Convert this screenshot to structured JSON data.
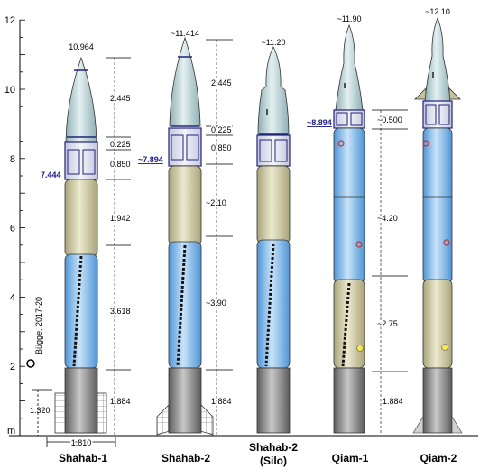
{
  "axis": {
    "unit": "m",
    "ticks": [
      "2",
      "4",
      "6",
      "8",
      "10",
      "12"
    ]
  },
  "credit": "Bügge, 2017-20",
  "base_dims": {
    "height": "1.320",
    "diameter": "1.810"
  },
  "rockets": [
    {
      "name": "Shahab-1",
      "subname": "",
      "top_label": "10.964",
      "marker": "7.444",
      "sections": [
        "2.445",
        "0.225",
        "0.850",
        "1.942",
        "3.618",
        "1.884"
      ]
    },
    {
      "name": "Shahab-2",
      "subname": "",
      "top_label": "~11.414",
      "marker": "~7.894",
      "sections": [
        "2.445",
        "0.225",
        "0.850",
        "~2.10",
        "~3.90",
        "1.884"
      ]
    },
    {
      "name": "Shahab-2",
      "subname": "(Silo)",
      "top_label": "~11.20",
      "marker": "",
      "sections": []
    },
    {
      "name": "Qiam-1",
      "subname": "",
      "top_label": "~11.90",
      "marker": "~8.894",
      "sections": [
        "~0.500",
        "~4.20",
        "~2.75",
        "1.884"
      ]
    },
    {
      "name": "Qiam-2",
      "subname": "",
      "top_label": "~12.10",
      "marker": "",
      "sections": []
    }
  ],
  "colors": {
    "warhead": "#b7cfd3",
    "guidance": "#dfe3ee",
    "fuel_tank": "#cdc9a5",
    "oxidizer_tank": "#8fc0e8",
    "engine": "#909090",
    "marker_text": "#1c1c8a"
  }
}
